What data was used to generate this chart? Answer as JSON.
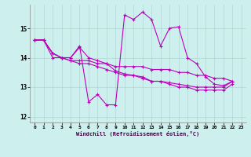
{
  "xlabel": "Windchill (Refroidissement éolien,°C)",
  "background_color": "#cdf0ee",
  "grid_color": "#b0d8d0",
  "line_color": "#bb00bb",
  "xlim": [
    -0.5,
    23.5
  ],
  "ylim": [
    11.8,
    15.8
  ],
  "xticks": [
    0,
    1,
    2,
    3,
    4,
    5,
    6,
    7,
    8,
    9,
    10,
    11,
    12,
    13,
    14,
    15,
    16,
    17,
    18,
    19,
    20,
    21,
    22,
    23
  ],
  "yticks": [
    12,
    13,
    14,
    15
  ],
  "series": [
    {
      "x": [
        0,
        1,
        2,
        3,
        4,
        5,
        6,
        7,
        8,
        9,
        10,
        11,
        12,
        13,
        14,
        15,
        16,
        17,
        18,
        19,
        20,
        21,
        22
      ],
      "y": [
        14.6,
        14.6,
        14.15,
        14.0,
        14.0,
        14.4,
        12.5,
        12.75,
        12.4,
        12.4,
        15.45,
        15.3,
        15.55,
        15.3,
        14.4,
        15.0,
        15.05,
        14.0,
        13.8,
        13.35,
        13.1,
        13.05,
        13.2
      ]
    },
    {
      "x": [
        0,
        1,
        2,
        3,
        4,
        5,
        6,
        7,
        8,
        9,
        10,
        11,
        12,
        13,
        14,
        15,
        16,
        17,
        18,
        19,
        20,
        21,
        22
      ],
      "y": [
        14.6,
        14.6,
        14.15,
        14.0,
        14.0,
        14.35,
        14.0,
        13.9,
        13.8,
        13.55,
        13.45,
        13.4,
        13.35,
        13.2,
        13.2,
        13.15,
        13.1,
        13.05,
        13.0,
        13.0,
        13.0,
        13.0,
        13.2
      ]
    },
    {
      "x": [
        0,
        1,
        2,
        3,
        4,
        5,
        6,
        7,
        8,
        9,
        10,
        11,
        12,
        13,
        14,
        15,
        16,
        17,
        18,
        19,
        20,
        21,
        22
      ],
      "y": [
        14.6,
        14.6,
        14.15,
        14.0,
        13.9,
        13.9,
        13.9,
        13.8,
        13.8,
        13.7,
        13.7,
        13.7,
        13.7,
        13.6,
        13.6,
        13.6,
        13.5,
        13.5,
        13.4,
        13.4,
        13.3,
        13.3,
        13.2
      ]
    },
    {
      "x": [
        0,
        1,
        2,
        3,
        4,
        5,
        6,
        7,
        8,
        9,
        10,
        11,
        12,
        13,
        14,
        15,
        16,
        17,
        18,
        19,
        20,
        21,
        22
      ],
      "y": [
        14.6,
        14.6,
        14.0,
        14.0,
        13.9,
        13.8,
        13.8,
        13.7,
        13.6,
        13.5,
        13.4,
        13.4,
        13.3,
        13.2,
        13.2,
        13.1,
        13.0,
        13.0,
        12.9,
        12.9,
        12.9,
        12.9,
        13.1
      ]
    }
  ]
}
